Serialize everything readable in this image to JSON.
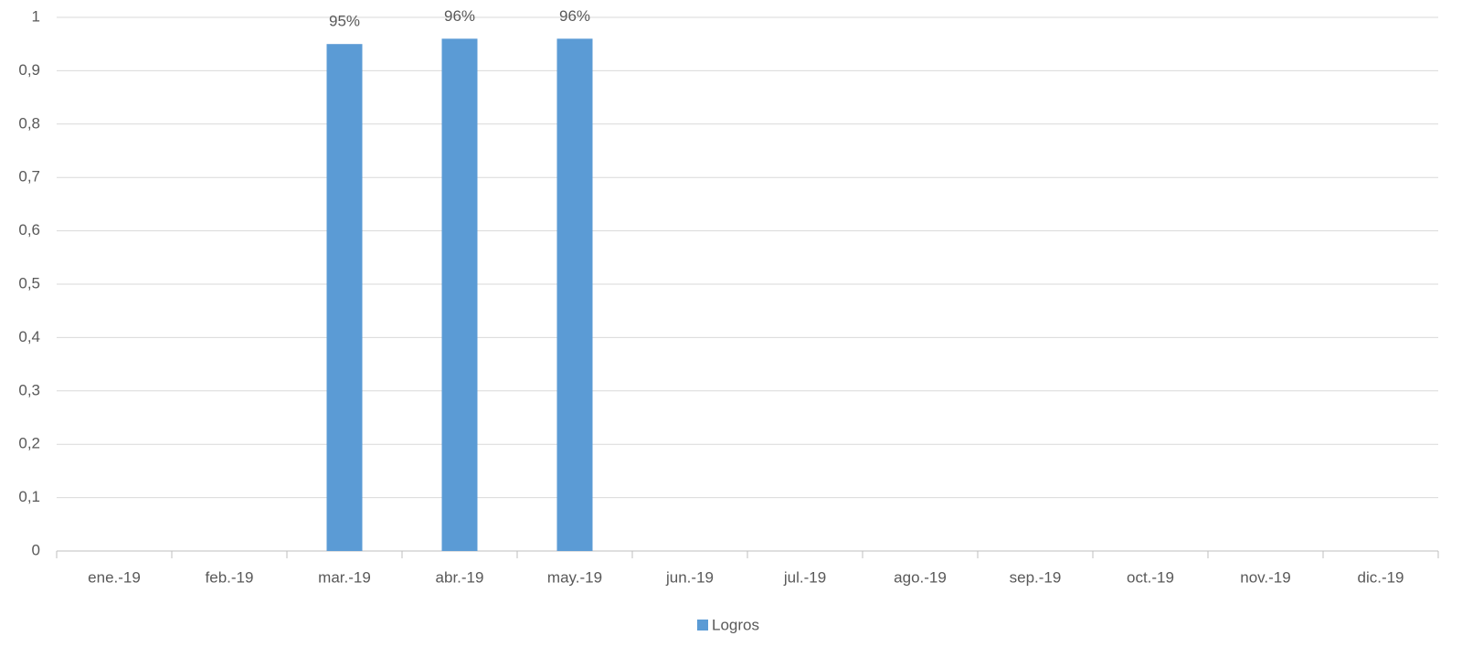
{
  "chart_data": {
    "type": "bar",
    "categories": [
      "ene.-19",
      "feb.-19",
      "mar.-19",
      "abr.-19",
      "may.-19",
      "jun.-19",
      "jul.-19",
      "ago.-19",
      "sep.-19",
      "oct.-19",
      "nov.-19",
      "dic.-19"
    ],
    "series": [
      {
        "name": "Logros",
        "color": "#5b9bd5",
        "values": [
          null,
          null,
          0.95,
          0.96,
          0.96,
          null,
          null,
          null,
          null,
          null,
          null,
          null
        ],
        "value_labels": [
          null,
          null,
          "95%",
          "96%",
          "96%",
          null,
          null,
          null,
          null,
          null,
          null,
          null
        ]
      }
    ],
    "ylim": [
      0,
      1
    ],
    "yticks": [
      0,
      {
        "value": 0.1,
        "label": "0,1"
      },
      {
        "value": 0.2,
        "label": "0,2"
      },
      {
        "value": 0.3,
        "label": "0,3"
      },
      {
        "value": 0.4,
        "label": "0,4"
      },
      {
        "value": 0.5,
        "label": "0,5"
      },
      {
        "value": 0.6,
        "label": "0,6"
      },
      {
        "value": 0.7,
        "label": "0,7"
      },
      {
        "value": 0.8,
        "label": "0,8"
      },
      {
        "value": 0.9,
        "label": "0,9"
      },
      1
    ],
    "grid": true,
    "legend": "bottom"
  }
}
